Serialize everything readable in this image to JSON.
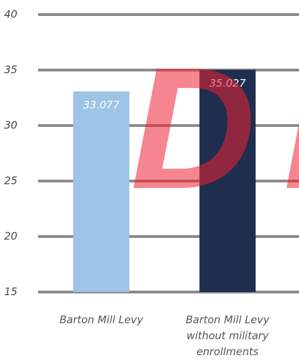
{
  "chart_data": {
    "type": "bar",
    "categories": [
      "Barton Mill Levy",
      "Barton Mill Levy without military enrollments"
    ],
    "values": [
      33.077,
      35.027
    ],
    "colors": [
      "#9dc3e6",
      "#1f2d4e"
    ],
    "ylim": [
      15,
      40
    ],
    "yticks": [
      15,
      20,
      25,
      30,
      35,
      40
    ],
    "grid": true,
    "watermark": "DI"
  }
}
